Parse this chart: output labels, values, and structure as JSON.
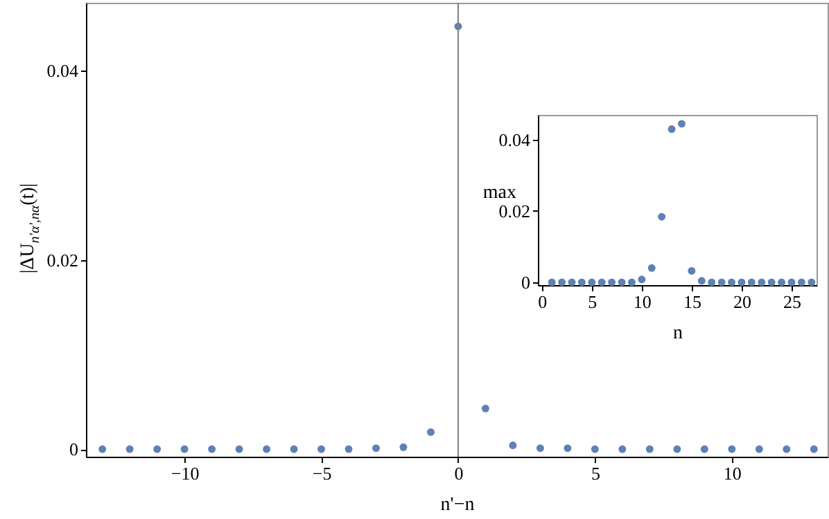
{
  "chart_data": [
    {
      "type": "scatter",
      "x": [
        -13,
        -12,
        -11,
        -10,
        -9,
        -8,
        -7,
        -6,
        -5,
        -4,
        -3,
        -2,
        -1,
        0,
        1,
        2,
        3,
        4,
        5,
        6,
        7,
        8,
        9,
        10,
        11,
        12,
        13
      ],
      "values": [
        0,
        0,
        0,
        0,
        0,
        0,
        0,
        0,
        0,
        0,
        0.0001,
        0.0002,
        0.0018,
        0.0447,
        0.0043,
        0.0004,
        0.0001,
        0.0001,
        0,
        0,
        0,
        0,
        0,
        0,
        0,
        0,
        0
      ],
      "color": "#5e81b5",
      "marker": "circle",
      "xlabel": "n'−n",
      "ylabel": "|ΔU$_{n'α',nα}$(t)|",
      "xlim": [
        -13.6,
        13.5
      ],
      "ylim": [
        -0.0008,
        0.0472
      ],
      "xticks": [
        -10,
        -5,
        0,
        5,
        10
      ],
      "yticks": [
        0,
        0.02,
        0.04
      ],
      "ref_lines": [
        {
          "axis": "x",
          "value": 0,
          "color": "#808080"
        }
      ]
    },
    {
      "type": "scatter",
      "x": [
        1,
        2,
        3,
        4,
        5,
        6,
        7,
        8,
        9,
        10,
        11,
        12,
        13,
        14,
        15,
        16,
        17,
        18,
        19,
        20,
        21,
        22,
        23,
        24,
        25,
        26,
        27
      ],
      "values": [
        0,
        0,
        0,
        0,
        0,
        0,
        0,
        0,
        0,
        0.0008,
        0.004,
        0.0184,
        0.043,
        0.0445,
        0.0032,
        0.0004,
        0,
        0,
        0,
        0,
        0,
        0,
        0,
        0,
        0,
        0,
        0
      ],
      "color": "#5e81b5",
      "marker": "circle",
      "xlabel": "n",
      "ylabel": "max",
      "xlim": [
        -0.4,
        27.5
      ],
      "ylim": [
        -0.0008,
        0.047
      ],
      "xticks": [
        0,
        5,
        10,
        15,
        20,
        25
      ],
      "yticks": [
        0,
        0.02,
        0.04
      ]
    }
  ]
}
